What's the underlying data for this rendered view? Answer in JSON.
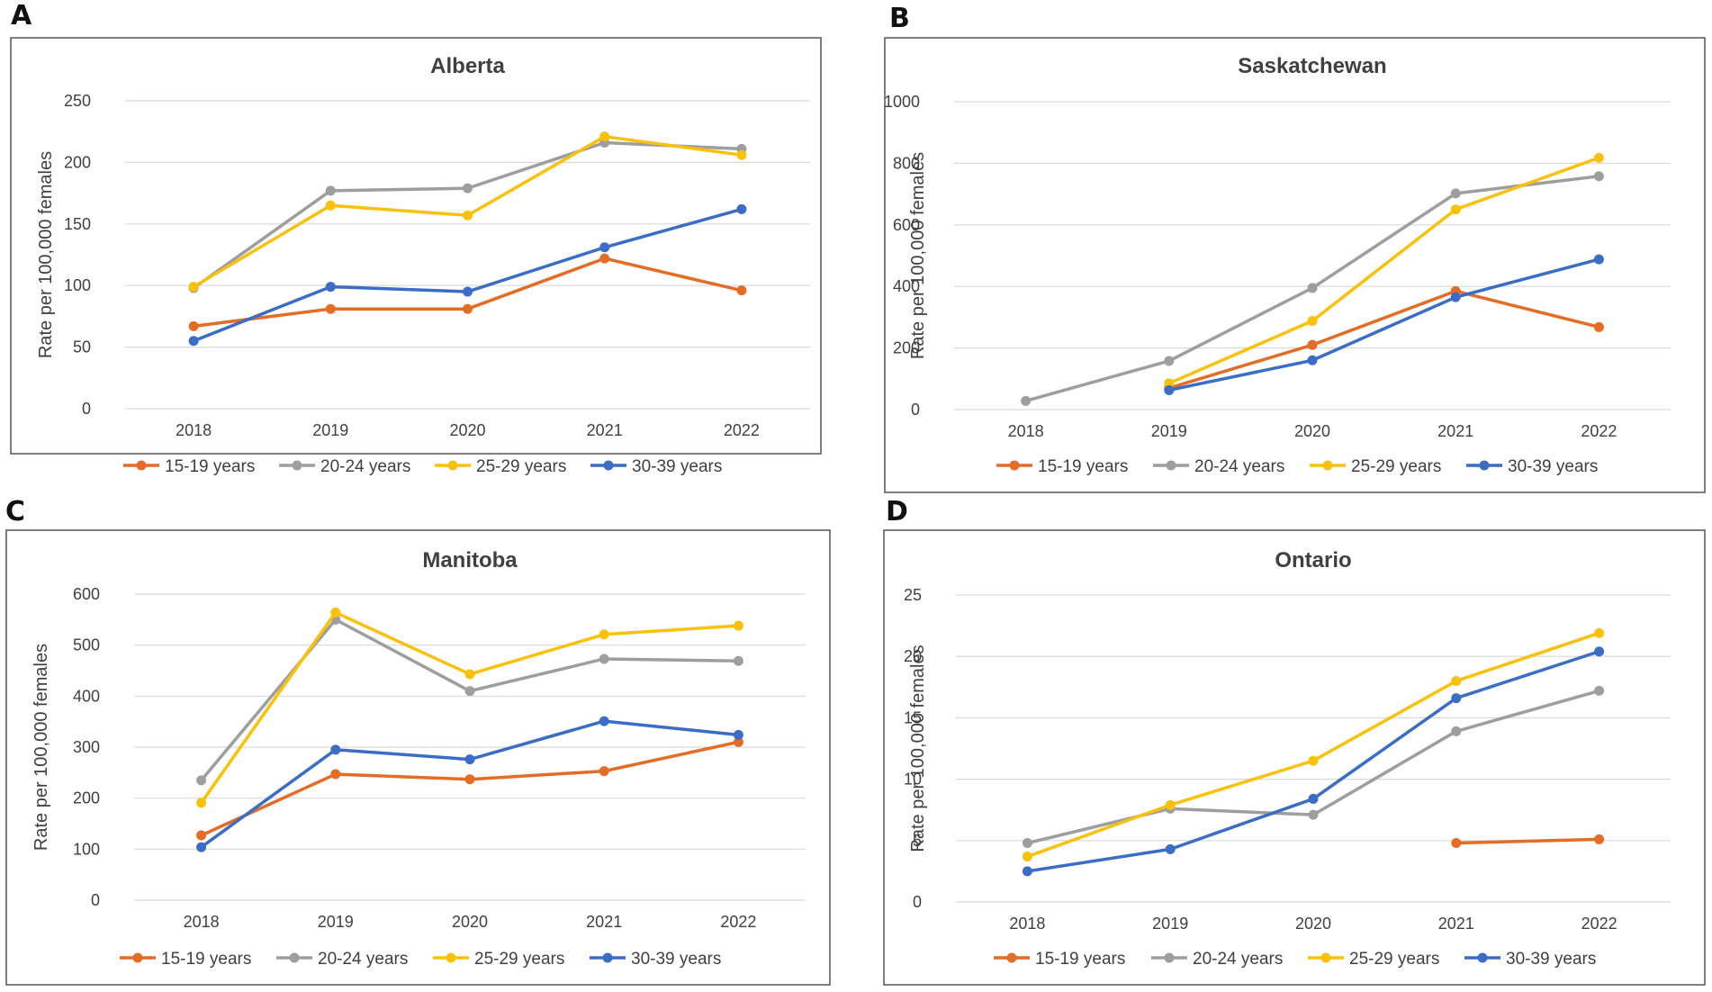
{
  "panel_labels": [
    "A",
    "B",
    "C",
    "D"
  ],
  "colors": {
    "15-19 years": "#E46C25",
    "20-24 years": "#9E9E9E",
    "25-29 years": "#F9C10A",
    "30-39 years": "#3B6DC7",
    "grid": "#D9D9D9",
    "frame": "#555555"
  },
  "chart_data": [
    {
      "type": "line",
      "title": "Alberta",
      "xlabel": "",
      "ylabel": "Rate per 100,000 females",
      "categories": [
        "2018",
        "2019",
        "2020",
        "2021",
        "2022"
      ],
      "ylim": [
        0,
        250
      ],
      "yticks": [
        0,
        50,
        100,
        150,
        200,
        250
      ],
      "ytick_labels": [
        "0",
        "50",
        "100",
        "150",
        "200",
        "250"
      ],
      "grid": true,
      "legend": "bottom",
      "series": [
        {
          "name": "15-19 years",
          "values": [
            67,
            81,
            81,
            122,
            96
          ]
        },
        {
          "name": "20-24 years",
          "values": [
            98,
            177,
            179,
            216,
            211
          ]
        },
        {
          "name": "25-29 years",
          "values": [
            99,
            165,
            157,
            221,
            206
          ]
        },
        {
          "name": "30-39 years",
          "values": [
            55,
            99,
            95,
            131,
            162
          ]
        }
      ]
    },
    {
      "type": "line",
      "title": "Saskatchewan",
      "xlabel": "",
      "ylabel": "Rate per 100,000 females",
      "categories": [
        "2018",
        "2019",
        "2020",
        "2021",
        "2022"
      ],
      "ylim": [
        0,
        1000
      ],
      "yticks": [
        0,
        200,
        400,
        600,
        800,
        1000
      ],
      "ytick_labels": [
        "0",
        "200",
        "400",
        "600",
        "800",
        "1000"
      ],
      "grid": true,
      "legend": "bottom",
      "series": [
        {
          "name": "15-19 years",
          "values": [
            null,
            70,
            210,
            385,
            268
          ]
        },
        {
          "name": "20-24 years",
          "values": [
            28,
            158,
            395,
            702,
            758
          ]
        },
        {
          "name": "25-29 years",
          "values": [
            null,
            85,
            288,
            650,
            818
          ]
        },
        {
          "name": "30-39 years",
          "values": [
            null,
            63,
            160,
            365,
            488
          ]
        }
      ]
    },
    {
      "type": "line",
      "title": "Manitoba",
      "xlabel": "",
      "ylabel": "Rate per 100,000  females",
      "categories": [
        "2018",
        "2019",
        "2020",
        "2021",
        "2022"
      ],
      "ylim": [
        0,
        600
      ],
      "yticks": [
        0,
        100,
        200,
        300,
        400,
        500,
        600
      ],
      "ytick_labels": [
        "0",
        "100",
        "200",
        "300",
        "400",
        "500",
        "600"
      ],
      "grid": true,
      "legend": "bottom",
      "series": [
        {
          "name": "15-19 years",
          "values": [
            127,
            247,
            237,
            253,
            310
          ]
        },
        {
          "name": "20-24 years",
          "values": [
            235,
            550,
            410,
            473,
            469
          ]
        },
        {
          "name": "25-29 years",
          "values": [
            191,
            564,
            443,
            521,
            538
          ]
        },
        {
          "name": "30-39 years",
          "values": [
            104,
            295,
            276,
            351,
            324
          ]
        }
      ]
    },
    {
      "type": "line",
      "title": "Ontario",
      "xlabel": "",
      "ylabel": "Rate per 100,000  females",
      "categories": [
        "2018",
        "2019",
        "2020",
        "2021",
        "2022"
      ],
      "ylim": [
        0,
        25
      ],
      "yticks": [
        0,
        5,
        10,
        15,
        20,
        25
      ],
      "ytick_labels": [
        "0",
        "5",
        "10",
        "15",
        "20",
        "25"
      ],
      "grid": true,
      "legend": "bottom",
      "series": [
        {
          "name": "15-19 years",
          "values": [
            null,
            null,
            null,
            4.8,
            5.1
          ]
        },
        {
          "name": "20-24 years",
          "values": [
            4.8,
            7.6,
            7.1,
            13.9,
            17.2
          ]
        },
        {
          "name": "25-29 years",
          "values": [
            3.7,
            7.9,
            11.5,
            18.0,
            21.9
          ]
        },
        {
          "name": "30-39 years",
          "values": [
            2.5,
            4.3,
            8.4,
            16.6,
            20.4
          ]
        }
      ]
    }
  ]
}
